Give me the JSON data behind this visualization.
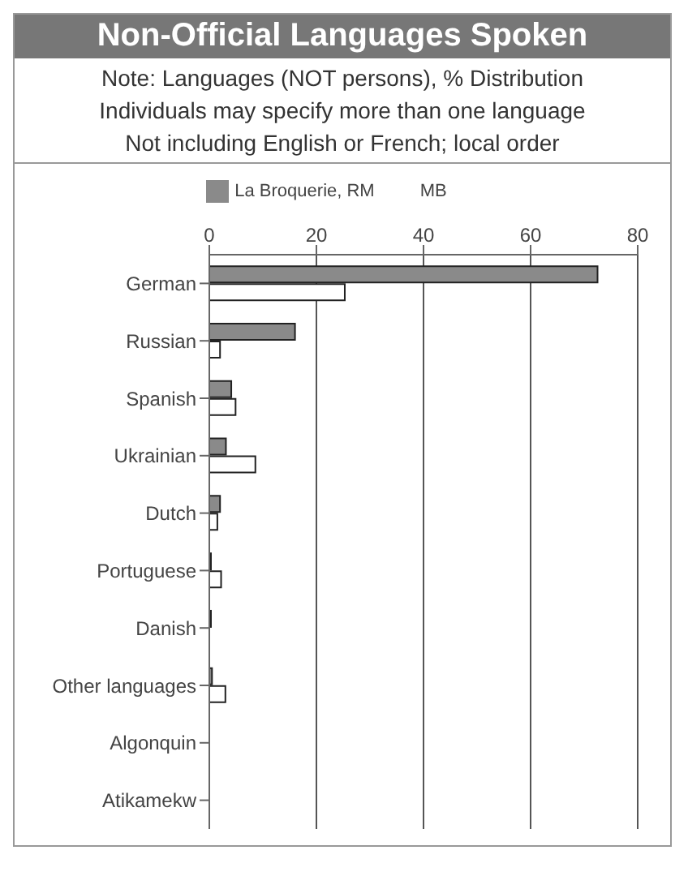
{
  "chart_data": {
    "type": "bar",
    "orientation": "horizontal",
    "title": "Non-Official Languages Spoken",
    "subtitle": "Note: Languages (NOT persons), % Distribution\nIndividuals may specify more than one language\nNot including English or French; local order",
    "categories": [
      "German",
      "Russian",
      "Spanish",
      "Ukrainian",
      "Dutch",
      "Portuguese",
      "Danish",
      "Other languages",
      "Algonquin",
      "Atikamekw"
    ],
    "series": [
      {
        "name": "La Broquerie, RM",
        "color": "#8a8a8a",
        "values": [
          72.5,
          16,
          4.1,
          3.1,
          2,
          0.3,
          0.3,
          0.5,
          0,
          0
        ]
      },
      {
        "name": "MB",
        "color": "#ffffff",
        "values": [
          25.3,
          2,
          4.9,
          8.6,
          1.5,
          2.2,
          0,
          3,
          0,
          0
        ]
      }
    ],
    "xlim": [
      0,
      80
    ],
    "xticks": [
      0,
      20,
      40,
      60,
      80
    ],
    "grid": "x",
    "legend": "top"
  }
}
